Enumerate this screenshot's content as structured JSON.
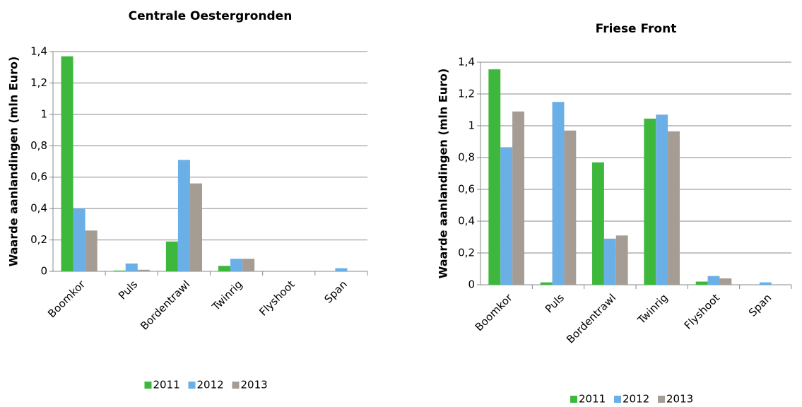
{
  "chart_data": [
    {
      "type": "bar",
      "title": "Centrale Oestergronden",
      "y_label": "Waarde aanlandingen (mln Euro)",
      "categories": [
        "Boomkor",
        "Puls",
        "Bordentrawl",
        "Twinrig",
        "Flyshoot",
        "Span"
      ],
      "series": [
        {
          "name": "2011",
          "color": "#3db83d",
          "values": [
            1.37,
            0.005,
            0.19,
            0.035,
            0,
            0
          ]
        },
        {
          "name": "2012",
          "color": "#6aafe6",
          "values": [
            0.4,
            0.05,
            0.71,
            0.08,
            0,
            0.02
          ]
        },
        {
          "name": "2013",
          "color": "#a59d94",
          "values": [
            0.26,
            0.01,
            0.56,
            0.08,
            0,
            0
          ]
        }
      ],
      "ylim": [
        0,
        1.4
      ],
      "yticks": [
        0,
        {
          "value": 0.2,
          "label": "0,2"
        },
        {
          "value": 0.4,
          "label": "0,4"
        },
        {
          "value": 0.6,
          "label": "0,6"
        },
        {
          "value": 0.8,
          "label": "0,8"
        },
        1,
        {
          "value": 1.2,
          "label": "1,2"
        },
        {
          "value": 1.4,
          "label": "1,4"
        }
      ],
      "grid": true,
      "legend": "bottom"
    },
    {
      "type": "bar",
      "title": "Friese Front",
      "y_label": "Waarde aanlandingen (mln Euro)",
      "categories": [
        "Boomkor",
        "Puls",
        "Bordentrawl",
        "Twinrig",
        "Flyshoot",
        "Span"
      ],
      "series": [
        {
          "name": "2011",
          "color": "#3db83d",
          "values": [
            1.355,
            0.015,
            0.77,
            1.045,
            0.02,
            0
          ]
        },
        {
          "name": "2012",
          "color": "#6aafe6",
          "values": [
            0.865,
            1.15,
            0.29,
            1.07,
            0.055,
            0.015
          ]
        },
        {
          "name": "2013",
          "color": "#a59d94",
          "values": [
            1.09,
            0.97,
            0.31,
            0.965,
            0.04,
            0
          ]
        }
      ],
      "ylim": [
        0,
        1.4
      ],
      "yticks": [
        0,
        {
          "value": 0.2,
          "label": "0,2"
        },
        {
          "value": 0.4,
          "label": "0,4"
        },
        {
          "value": 0.6,
          "label": "0,6"
        },
        {
          "value": 0.8,
          "label": "0,8"
        },
        1,
        {
          "value": 1.2,
          "label": "1,2"
        },
        {
          "value": 1.4,
          "label": "1,4"
        }
      ],
      "grid": true,
      "legend": "bottom"
    }
  ]
}
